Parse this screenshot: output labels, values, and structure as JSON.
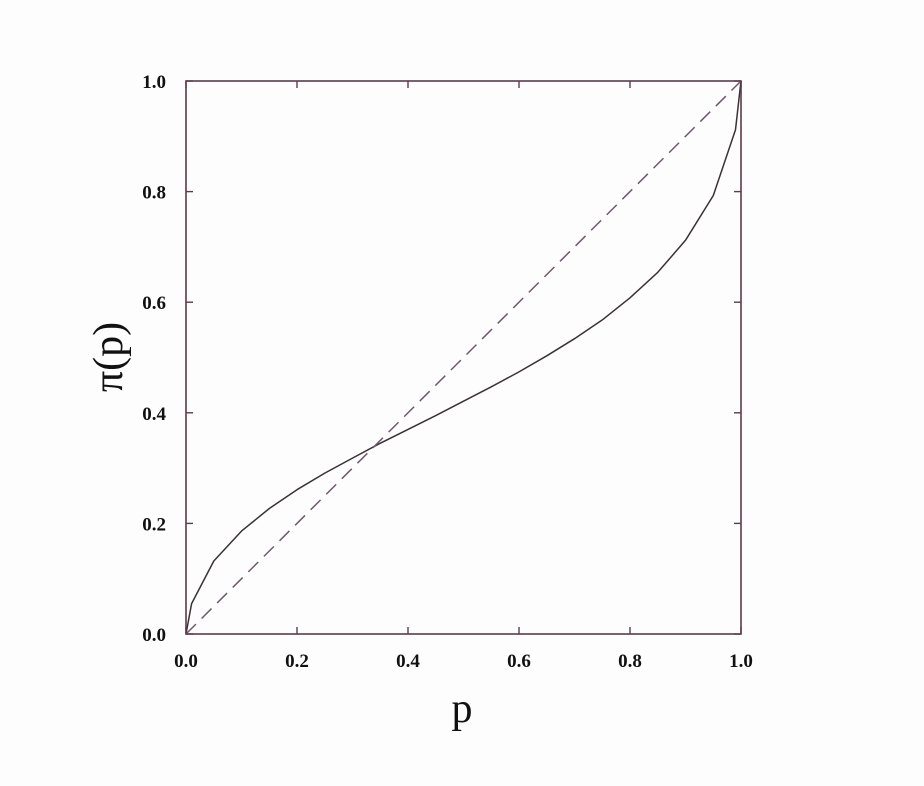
{
  "chart_data": {
    "type": "line",
    "title": "",
    "xlabel": "p",
    "ylabel": "π(p)",
    "xlim": [
      0.0,
      1.0
    ],
    "ylim": [
      0.0,
      1.0
    ],
    "xticks": [
      "0.0",
      "0.2",
      "0.4",
      "0.6",
      "0.8",
      "1.0"
    ],
    "yticks": [
      "0.0",
      "0.2",
      "0.4",
      "0.6",
      "0.8",
      "1.0"
    ],
    "grid": false,
    "colors": {
      "axes": "#5a3d4c",
      "curve": "#3a3236",
      "diagonal": "#6d5a6e"
    },
    "series": [
      {
        "style": "solid",
        "x": [
          0,
          0.01,
          0.05,
          0.1,
          0.15,
          0.2,
          0.25,
          0.3,
          0.35,
          0.4,
          0.45,
          0.5,
          0.55,
          0.6,
          0.65,
          0.7,
          0.75,
          0.8,
          0.85,
          0.9,
          0.95,
          0.99,
          1.0
        ],
        "y": [
          0,
          0.055,
          0.132,
          0.186,
          0.227,
          0.261,
          0.291,
          0.318,
          0.345,
          0.37,
          0.395,
          0.421,
          0.447,
          0.474,
          0.503,
          0.534,
          0.568,
          0.608,
          0.654,
          0.712,
          0.793,
          0.912,
          1.0
        ]
      },
      {
        "style": "dashed",
        "x": [
          0,
          1
        ],
        "y": [
          0,
          1
        ]
      }
    ]
  }
}
